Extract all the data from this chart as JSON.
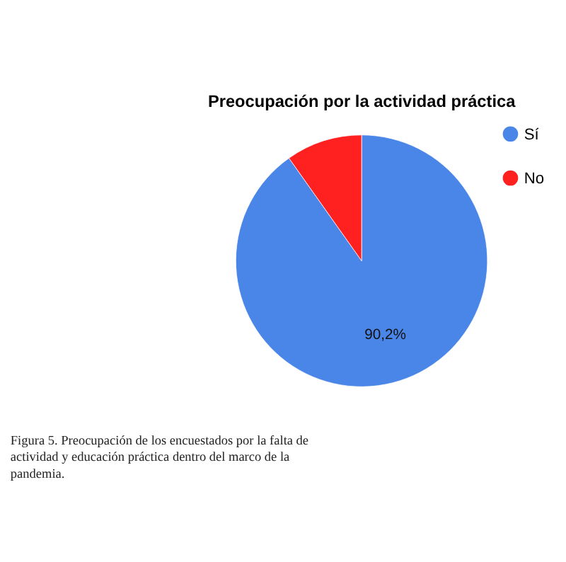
{
  "chart_data": {
    "type": "pie",
    "title": "Preocupación por la actividad práctica",
    "categories": [
      "Sí",
      "No"
    ],
    "values": [
      90.2,
      9.8
    ],
    "colors": [
      "#4a86e8",
      "#ff2020"
    ],
    "value_labels": [
      "90,2%",
      null
    ],
    "legend": "top right",
    "annotations": [
      "Figura 5. Preocupación de los encuestados por la falta de actividad y educación práctica dentro del marco de la pandemia."
    ]
  }
}
